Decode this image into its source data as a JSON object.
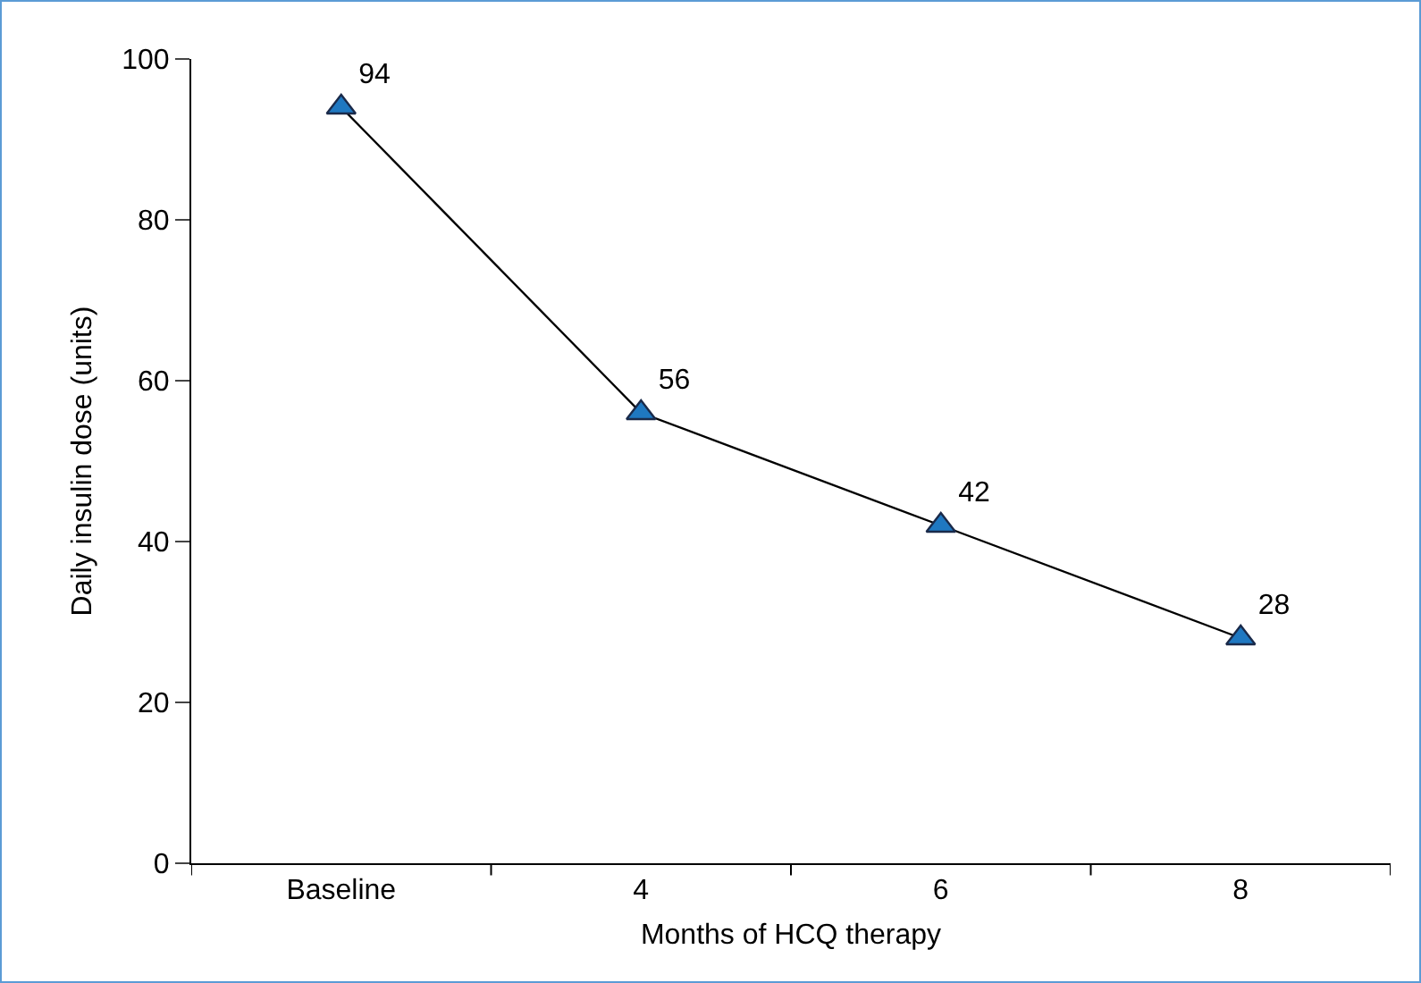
{
  "chart_data": {
    "type": "line",
    "xlabel": "Months of HCQ therapy",
    "ylabel": "Daily insulin dose (units)",
    "categories": [
      "Baseline",
      "4",
      "6",
      "8"
    ],
    "series": [
      {
        "color": "#1f78c1",
        "values": [
          94,
          56,
          42,
          28
        ]
      }
    ],
    "ylim": [
      0,
      100
    ],
    "yticks": [
      0,
      20,
      40,
      60,
      80,
      100
    ],
    "marker": "triangle",
    "line_style": "solid",
    "data_labels": true
  }
}
